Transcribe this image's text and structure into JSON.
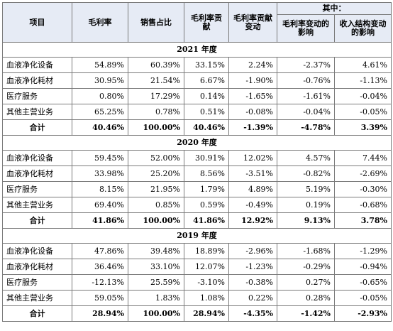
{
  "header": {
    "item": "项目",
    "gross_margin": "毛利率",
    "sales_share": "销售占比",
    "gm_contribution": "毛利率贡献",
    "contribution_change": "毛利率贡献变动",
    "of_which": "其中：",
    "gm_change_effect": "毛利率变动的影响",
    "mix_change_effect": "收入结构变动的影响"
  },
  "sections": [
    {
      "year": "2021 年度",
      "rows": [
        {
          "name": "血液净化设备",
          "values": [
            "54.89%",
            "60.39%",
            "33.15%",
            "2.24%",
            "-2.37%",
            "4.61%"
          ]
        },
        {
          "name": "血液净化耗材",
          "values": [
            "30.95%",
            "21.54%",
            "6.67%",
            "-1.90%",
            "-0.76%",
            "-1.13%"
          ]
        },
        {
          "name": "医疗服务",
          "values": [
            "0.80%",
            "17.29%",
            "0.14%",
            "-1.65%",
            "-1.61%",
            "-0.04%"
          ]
        },
        {
          "name": "其他主营业务",
          "values": [
            "65.25%",
            "0.78%",
            "0.51%",
            "-0.08%",
            "-0.04%",
            "-0.05%"
          ]
        }
      ],
      "total": {
        "name": "合计",
        "values": [
          "40.46%",
          "100.00%",
          "40.46%",
          "-1.39%",
          "-4.78%",
          "3.39%"
        ]
      }
    },
    {
      "year": "2020 年度",
      "rows": [
        {
          "name": "血液净化设备",
          "values": [
            "59.45%",
            "52.00%",
            "30.91%",
            "12.02%",
            "4.57%",
            "7.44%"
          ]
        },
        {
          "name": "血液净化耗材",
          "values": [
            "33.98%",
            "25.20%",
            "8.56%",
            "-3.51%",
            "-0.82%",
            "-2.69%"
          ]
        },
        {
          "name": "医疗服务",
          "values": [
            "8.15%",
            "21.95%",
            "1.79%",
            "4.89%",
            "5.19%",
            "-0.30%"
          ]
        },
        {
          "name": "其他主营业务",
          "values": [
            "69.40%",
            "0.85%",
            "0.59%",
            "-0.49%",
            "0.19%",
            "-0.68%"
          ]
        }
      ],
      "total": {
        "name": "合计",
        "values": [
          "41.86%",
          "100.00%",
          "41.86%",
          "12.92%",
          "9.13%",
          "3.78%"
        ]
      }
    },
    {
      "year": "2019 年度",
      "rows": [
        {
          "name": "血液净化设备",
          "values": [
            "47.86%",
            "39.48%",
            "18.89%",
            "-2.96%",
            "-1.68%",
            "-1.29%"
          ]
        },
        {
          "name": "血液净化耗材",
          "values": [
            "36.46%",
            "33.10%",
            "12.07%",
            "-1.23%",
            "-0.29%",
            "-0.94%"
          ]
        },
        {
          "name": "医疗服务",
          "values": [
            "-12.13%",
            "25.59%",
            "-3.10%",
            "-0.38%",
            "0.27%",
            "-0.65%"
          ]
        },
        {
          "name": "其他主营业务",
          "values": [
            "59.05%",
            "1.83%",
            "1.08%",
            "0.22%",
            "0.28%",
            "-0.05%"
          ]
        }
      ],
      "total": {
        "name": "合计",
        "values": [
          "28.94%",
          "100.00%",
          "28.94%",
          "-4.35%",
          "-1.42%",
          "-2.93%"
        ]
      }
    }
  ]
}
